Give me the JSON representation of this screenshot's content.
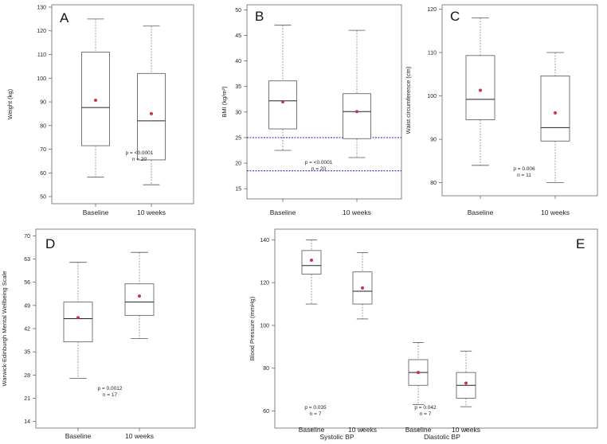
{
  "figure": {
    "panels": [
      "A",
      "B",
      "C",
      "D",
      "E"
    ]
  },
  "chart_data": [
    {
      "panel": "A",
      "type": "box",
      "ylabel": "Weight (kg)",
      "ylim": [
        47,
        131
      ],
      "yticks": [
        50,
        60,
        70,
        80,
        90,
        100,
        110,
        120,
        130
      ],
      "categories": [
        "Baseline",
        "10 weeks"
      ],
      "boxes": [
        {
          "min": 58.2,
          "q1": 71.5,
          "median": 87.6,
          "q3": 111,
          "max": 125,
          "mean": 90.7
        },
        {
          "min": 55,
          "q1": 65.5,
          "median": 82,
          "q3": 102,
          "max": 122,
          "mean": 85
        }
      ],
      "annotation": [
        "p = <0.0001",
        "n = 20"
      ],
      "mean_color": "#cc3344"
    },
    {
      "panel": "B",
      "type": "box",
      "ylabel": "BMI (kg/m²)",
      "ylim": [
        13,
        51
      ],
      "yticks": [
        15,
        20,
        25,
        30,
        35,
        40,
        45,
        50
      ],
      "categories": [
        "Baseline",
        "10 weeks"
      ],
      "boxes": [
        {
          "min": 22.5,
          "q1": 26.7,
          "median": 32.2,
          "q3": 36.1,
          "max": 47,
          "mean": 32
        },
        {
          "min": 21.1,
          "q1": 24.8,
          "median": 30.1,
          "q3": 33.6,
          "max": 46,
          "mean": 30.1
        }
      ],
      "reference_lines": [
        25,
        18.5
      ],
      "reference_color": "#3333cc",
      "annotation": [
        "p = <0.0001",
        "n = 20"
      ],
      "mean_color": "#cc3344"
    },
    {
      "panel": "C",
      "type": "box",
      "ylabel": "Waist circumference (cm)",
      "ylim": [
        77,
        121
      ],
      "yticks": [
        80,
        90,
        100,
        110,
        120
      ],
      "categories": [
        "Baseline",
        "10 weeks"
      ],
      "boxes": [
        {
          "min": 84,
          "q1": 94.5,
          "median": 99.2,
          "q3": 109.3,
          "max": 118,
          "mean": 101.3
        },
        {
          "min": 80,
          "q1": 89.6,
          "median": 92.7,
          "q3": 104.6,
          "max": 110,
          "mean": 96.1
        }
      ],
      "annotation": [
        "p = 0.006",
        "n = 11"
      ],
      "mean_color": "#cc3344"
    },
    {
      "panel": "D",
      "type": "box",
      "ylabel": "Warwick-Edinburgh Mental Wellbeing Scale",
      "ylim": [
        12,
        72
      ],
      "yticks": [
        14,
        21,
        28,
        35,
        42,
        49,
        56,
        63,
        70
      ],
      "categories": [
        "Baseline",
        "10 weeks"
      ],
      "boxes": [
        {
          "min": 27,
          "q1": 38,
          "median": 45,
          "q3": 50,
          "max": 62,
          "mean": 45.3
        },
        {
          "min": 39,
          "q1": 46,
          "median": 50,
          "q3": 55.5,
          "max": 65,
          "mean": 51.8
        }
      ],
      "annotation": [
        "p = 0.0012",
        "n = 17"
      ],
      "mean_color": "#cc3344"
    },
    {
      "panel": "E",
      "type": "box",
      "ylabel": "Blood Pressure (mmHg)",
      "ylim": [
        52,
        145
      ],
      "yticks": [
        60,
        80,
        100,
        120,
        140
      ],
      "categories": [
        "Baseline",
        "10 weeks",
        "Baseline",
        "10 weeks"
      ],
      "groups": [
        "Systolic BP",
        "Diastolic BP"
      ],
      "boxes": [
        {
          "min": 110,
          "q1": 124,
          "median": 128,
          "q3": 135,
          "max": 140,
          "mean": 130.5
        },
        {
          "min": 103,
          "q1": 110,
          "median": 116,
          "q3": 125,
          "max": 134,
          "mean": 117.5
        },
        {
          "min": 63,
          "q1": 72,
          "median": 78,
          "q3": 84,
          "max": 92,
          "mean": 78
        },
        {
          "min": 62,
          "q1": 66,
          "median": 72,
          "q3": 78,
          "max": 88,
          "mean": 73
        }
      ],
      "annotations": [
        [
          "p = 0.035",
          "n = 7"
        ],
        [
          "p = 0.042",
          "n = 7"
        ]
      ],
      "mean_color": "#cc3344"
    }
  ]
}
